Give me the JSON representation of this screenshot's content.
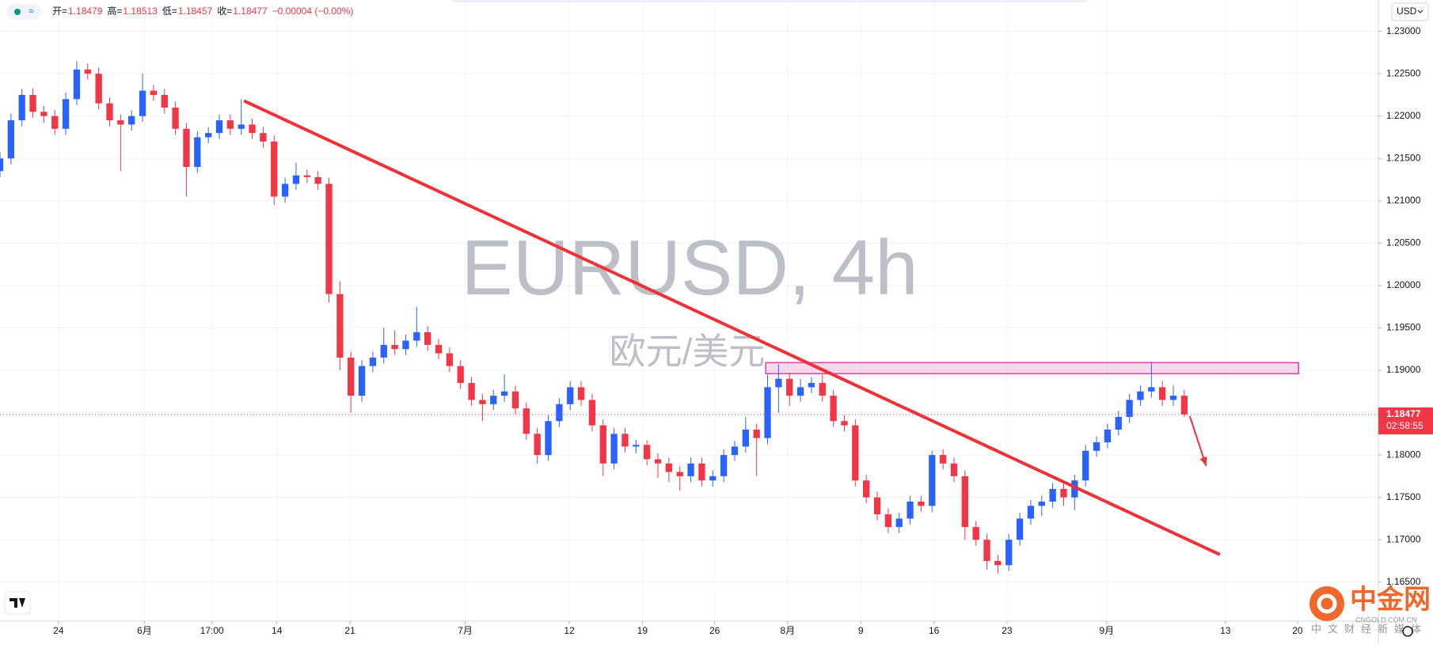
{
  "chart_data": {
    "type": "candlestick",
    "header": {
      "items": [
        {
          "label": "开=",
          "value": "1.18479"
        },
        {
          "label": "高=",
          "value": "1.18513"
        },
        {
          "label": "低=",
          "value": "1.18457"
        },
        {
          "label": "收=",
          "value": "1.18477"
        }
      ],
      "change": "−0.00004 (−0.00%)"
    },
    "watermark": "EURUSD, 4h",
    "watermark_subtitle": "欧元/美元",
    "currency": "USD",
    "last_price": {
      "value": 1.18477,
      "label": "1.18477"
    },
    "countdown": "02:58:55",
    "up_color": "#2962ff",
    "down_color": "#f23645",
    "xlim": [
      0,
      125.7
    ],
    "ylim": [
      1.1604,
      1.2337
    ],
    "grid": true,
    "xticks": [
      {
        "value": 5.33,
        "label": "24"
      },
      {
        "value": 13.17,
        "label": "6月"
      },
      {
        "value": 19.33,
        "label": "17:00"
      },
      {
        "value": 25.25,
        "label": "14"
      },
      {
        "value": 31.92,
        "label": "21"
      },
      {
        "value": 42.42,
        "label": "7月"
      },
      {
        "value": 51.92,
        "label": "12"
      },
      {
        "value": 58.58,
        "label": "19"
      },
      {
        "value": 65.17,
        "label": "26"
      },
      {
        "value": 71.83,
        "label": "8月"
      },
      {
        "value": 78.5,
        "label": "9"
      },
      {
        "value": 85.17,
        "label": "16"
      },
      {
        "value": 91.83,
        "label": "23"
      },
      {
        "value": 100.92,
        "label": "9月"
      },
      {
        "value": 111.75,
        "label": "13"
      },
      {
        "value": 118.33,
        "label": "20"
      }
    ],
    "yticks": [
      {
        "value": 1.165,
        "label": "1.16500"
      },
      {
        "value": 1.17,
        "label": "1.17000"
      },
      {
        "value": 1.175,
        "label": "1.17500"
      },
      {
        "value": 1.18,
        "label": "1.18000"
      },
      {
        "value": 1.185,
        "label": "1.18500"
      },
      {
        "value": 1.19,
        "label": "1.19000"
      },
      {
        "value": 1.195,
        "label": "1.19500"
      },
      {
        "value": 1.2,
        "label": "1.20000"
      },
      {
        "value": 1.205,
        "label": "1.20500"
      },
      {
        "value": 1.21,
        "label": "1.21000"
      },
      {
        "value": 1.215,
        "label": "1.21500"
      },
      {
        "value": 1.22,
        "label": "1.22000"
      },
      {
        "value": 1.225,
        "label": "1.22500"
      },
      {
        "value": 1.23,
        "label": "1.23000"
      }
    ],
    "candles": [
      [
        1.2135,
        1.2158,
        1.2128,
        1.215
      ],
      [
        1.215,
        1.2203,
        1.2143,
        1.2195
      ],
      [
        1.2195,
        1.2232,
        1.2188,
        1.2225
      ],
      [
        1.2225,
        1.2233,
        1.2198,
        1.2205
      ],
      [
        1.2205,
        1.2212,
        1.2192,
        1.22
      ],
      [
        1.22,
        1.2207,
        1.2178,
        1.2185
      ],
      [
        1.2185,
        1.2228,
        1.2178,
        1.222
      ],
      [
        1.222,
        1.2265,
        1.2213,
        1.2255
      ],
      [
        1.2255,
        1.2262,
        1.2243,
        1.225
      ],
      [
        1.225,
        1.2257,
        1.2208,
        1.2215
      ],
      [
        1.2215,
        1.2222,
        1.2188,
        1.2195
      ],
      [
        1.2195,
        1.2202,
        1.2135,
        1.219
      ],
      [
        1.219,
        1.2207,
        1.2183,
        1.22
      ],
      [
        1.22,
        1.225,
        1.2193,
        1.223
      ],
      [
        1.223,
        1.2237,
        1.2218,
        1.2225
      ],
      [
        1.2225,
        1.2232,
        1.2203,
        1.221
      ],
      [
        1.221,
        1.2217,
        1.2178,
        1.2185
      ],
      [
        1.2185,
        1.2192,
        1.2105,
        1.214
      ],
      [
        1.214,
        1.2182,
        1.2133,
        1.2175
      ],
      [
        1.2175,
        1.2187,
        1.2168,
        1.218
      ],
      [
        1.218,
        1.2202,
        1.2173,
        1.2195
      ],
      [
        1.2195,
        1.2202,
        1.2178,
        1.2185
      ],
      [
        1.2185,
        1.222,
        1.2178,
        1.219
      ],
      [
        1.219,
        1.2197,
        1.2173,
        1.218
      ],
      [
        1.218,
        1.2187,
        1.2163,
        1.217
      ],
      [
        1.217,
        1.2177,
        1.2095,
        1.2105
      ],
      [
        1.2105,
        1.2127,
        1.2098,
        1.212
      ],
      [
        1.212,
        1.2145,
        1.2113,
        1.213
      ],
      [
        1.213,
        1.2137,
        1.2121,
        1.2128
      ],
      [
        1.2128,
        1.2135,
        1.2113,
        1.212
      ],
      [
        1.212,
        1.2127,
        1.198,
        1.199
      ],
      [
        1.199,
        1.2005,
        1.19,
        1.1915
      ],
      [
        1.1915,
        1.1922,
        1.185,
        1.187
      ],
      [
        1.187,
        1.1912,
        1.1863,
        1.1905
      ],
      [
        1.1905,
        1.1922,
        1.1898,
        1.1915
      ],
      [
        1.1915,
        1.195,
        1.1908,
        1.193
      ],
      [
        1.193,
        1.1947,
        1.1918,
        1.1925
      ],
      [
        1.1925,
        1.1942,
        1.1918,
        1.1935
      ],
      [
        1.1935,
        1.1975,
        1.1928,
        1.1945
      ],
      [
        1.1945,
        1.1952,
        1.1923,
        1.193
      ],
      [
        1.193,
        1.1937,
        1.1913,
        1.192
      ],
      [
        1.192,
        1.1927,
        1.1898,
        1.1905
      ],
      [
        1.1905,
        1.1912,
        1.1878,
        1.1885
      ],
      [
        1.1885,
        1.1892,
        1.1858,
        1.1865
      ],
      [
        1.1865,
        1.1872,
        1.184,
        1.186
      ],
      [
        1.186,
        1.1877,
        1.1853,
        1.187
      ],
      [
        1.187,
        1.1895,
        1.1863,
        1.1875
      ],
      [
        1.1875,
        1.1882,
        1.1848,
        1.1855
      ],
      [
        1.1855,
        1.1862,
        1.1818,
        1.1825
      ],
      [
        1.1825,
        1.1832,
        1.179,
        1.18
      ],
      [
        1.18,
        1.1847,
        1.1793,
        1.184
      ],
      [
        1.184,
        1.1867,
        1.1833,
        1.186
      ],
      [
        1.186,
        1.1887,
        1.1853,
        1.188
      ],
      [
        1.188,
        1.1887,
        1.1858,
        1.1865
      ],
      [
        1.1865,
        1.1872,
        1.1828,
        1.1835
      ],
      [
        1.1835,
        1.1842,
        1.1775,
        1.179
      ],
      [
        1.179,
        1.1832,
        1.1783,
        1.1825
      ],
      [
        1.1825,
        1.1832,
        1.1803,
        1.181
      ],
      [
        1.181,
        1.1818,
        1.1802,
        1.1812
      ],
      [
        1.1812,
        1.1817,
        1.1788,
        1.1795
      ],
      [
        1.1795,
        1.1802,
        1.1773,
        1.179
      ],
      [
        1.179,
        1.1797,
        1.1768,
        1.178
      ],
      [
        1.178,
        1.1787,
        1.1758,
        1.1775
      ],
      [
        1.1775,
        1.1797,
        1.1768,
        1.179
      ],
      [
        1.179,
        1.1797,
        1.1763,
        1.177
      ],
      [
        1.177,
        1.1782,
        1.1763,
        1.1775
      ],
      [
        1.1775,
        1.1807,
        1.1768,
        1.18
      ],
      [
        1.18,
        1.1817,
        1.1793,
        1.181
      ],
      [
        1.181,
        1.1845,
        1.1803,
        1.183
      ],
      [
        1.183,
        1.1837,
        1.1775,
        1.182
      ],
      [
        1.182,
        1.1895,
        1.1813,
        1.188
      ],
      [
        1.188,
        1.1907,
        1.185,
        1.189
      ],
      [
        1.189,
        1.1897,
        1.1858,
        1.187
      ],
      [
        1.187,
        1.189,
        1.1863,
        1.188
      ],
      [
        1.188,
        1.1892,
        1.1873,
        1.1885
      ],
      [
        1.1885,
        1.1895,
        1.1863,
        1.187
      ],
      [
        1.187,
        1.1877,
        1.1833,
        1.184
      ],
      [
        1.184,
        1.1847,
        1.1828,
        1.1835
      ],
      [
        1.1835,
        1.1842,
        1.1763,
        1.177
      ],
      [
        1.177,
        1.1777,
        1.1743,
        1.175
      ],
      [
        1.175,
        1.1757,
        1.1723,
        1.173
      ],
      [
        1.173,
        1.1737,
        1.1708,
        1.1715
      ],
      [
        1.1715,
        1.1732,
        1.1708,
        1.1725
      ],
      [
        1.1725,
        1.1752,
        1.1718,
        1.1745
      ],
      [
        1.1745,
        1.1752,
        1.1733,
        1.174
      ],
      [
        1.174,
        1.1805,
        1.1733,
        1.18
      ],
      [
        1.18,
        1.1807,
        1.1783,
        1.179
      ],
      [
        1.179,
        1.1797,
        1.1768,
        1.1775
      ],
      [
        1.1775,
        1.1782,
        1.17,
        1.1715
      ],
      [
        1.1715,
        1.1722,
        1.1693,
        1.17
      ],
      [
        1.17,
        1.1707,
        1.1665,
        1.1675
      ],
      [
        1.1675,
        1.1682,
        1.166,
        1.167
      ],
      [
        1.167,
        1.1707,
        1.1663,
        1.17
      ],
      [
        1.17,
        1.1732,
        1.1693,
        1.1725
      ],
      [
        1.1725,
        1.1747,
        1.1718,
        1.174
      ],
      [
        1.174,
        1.1752,
        1.1728,
        1.1745
      ],
      [
        1.1745,
        1.1767,
        1.1738,
        1.176
      ],
      [
        1.176,
        1.1767,
        1.174,
        1.175
      ],
      [
        1.175,
        1.1777,
        1.1735,
        1.177
      ],
      [
        1.177,
        1.1812,
        1.1763,
        1.1805
      ],
      [
        1.1805,
        1.1822,
        1.1798,
        1.1815
      ],
      [
        1.1815,
        1.1837,
        1.1808,
        1.183
      ],
      [
        1.183,
        1.1852,
        1.1823,
        1.1845
      ],
      [
        1.1845,
        1.1872,
        1.1838,
        1.1865
      ],
      [
        1.1865,
        1.1882,
        1.1858,
        1.1875
      ],
      [
        1.1875,
        1.191,
        1.1868,
        1.188
      ],
      [
        1.188,
        1.1887,
        1.1858,
        1.1865
      ],
      [
        1.1865,
        1.1882,
        1.1858,
        1.187
      ],
      [
        1.187,
        1.1877,
        1.1845,
        1.1848
      ]
    ],
    "trendline": {
      "color": "#f23037",
      "start": [
        22.25,
        1.2218
      ],
      "end": [
        111.25,
        1.16825
      ]
    },
    "zone": {
      "color": "#e040a0",
      "x": [
        69.83,
        118.42
      ],
      "y": [
        1.1896,
        1.1909
      ]
    },
    "arrow": {
      "color": "#f23037",
      "start": [
        108.5,
        1.1846
      ],
      "end": [
        110,
        1.1787
      ]
    },
    "logo": {
      "name": "中金网",
      "domain": "CNGOLD.COM.CN",
      "tagline": "中文财经新媒体"
    }
  }
}
